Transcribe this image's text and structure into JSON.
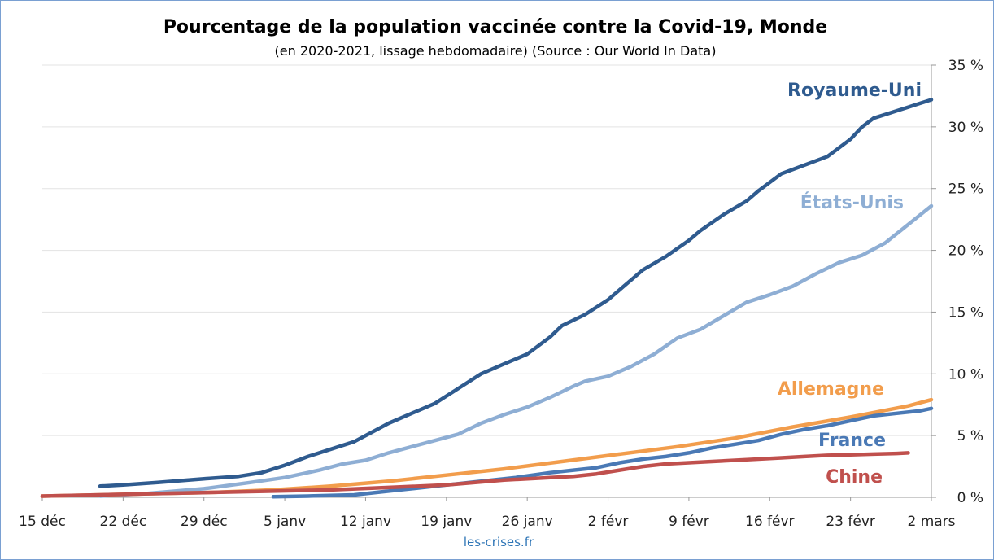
{
  "chart_data": {
    "type": "line",
    "title": "Pourcentage de la population vaccinée contre la Covid-19, Monde",
    "subtitle": "(en 2020-2021, lissage hebdomadaire) (Source : Our World In Data)",
    "source_label": "les-crises.fr",
    "x_ticks": [
      "15 déc",
      "22 déc",
      "29 déc",
      "5 janv",
      "12 janv",
      "19 janv",
      "26 janv",
      "2 févr",
      "9 févr",
      "16 févr",
      "23 févr",
      "2 mars"
    ],
    "x_range": [
      0,
      77
    ],
    "y_ticks": [
      "0 %",
      "5 %",
      "10 %",
      "15 %",
      "20 %",
      "25 %",
      "30 %",
      "35 %"
    ],
    "y_axis_side": "right",
    "ylim": [
      0,
      35
    ],
    "grid": true,
    "legend": "inline labels at line ends",
    "series": [
      {
        "name": "Royaume-Uni",
        "color": "#2f5b8f",
        "x": [
          5,
          7,
          10,
          14,
          17,
          19,
          21,
          23,
          25,
          27,
          28,
          30,
          32,
          34,
          36,
          38,
          40,
          42,
          44,
          45,
          47,
          49,
          50,
          52,
          54,
          56,
          57,
          59,
          61,
          62,
          64,
          66,
          68,
          70,
          71,
          72,
          73,
          74,
          75,
          76,
          77
        ],
        "y": [
          0.9,
          1.0,
          1.2,
          1.5,
          1.7,
          2.0,
          2.6,
          3.3,
          3.9,
          4.5,
          5.0,
          6.0,
          6.8,
          7.6,
          8.8,
          10.0,
          10.8,
          11.6,
          13.0,
          13.9,
          14.8,
          16.0,
          16.8,
          18.4,
          19.5,
          20.8,
          21.6,
          22.9,
          24.0,
          24.8,
          26.2,
          26.9,
          27.6,
          29.0,
          30.0,
          30.7,
          31.0,
          31.3,
          31.6,
          31.9,
          32.2
        ]
      },
      {
        "name": "États-Unis",
        "color": "#8eaed4",
        "x": [
          5,
          9,
          14,
          18,
          21,
          24,
          26,
          28,
          30,
          32,
          34,
          36,
          38,
          40,
          42,
          44,
          46,
          47,
          49,
          51,
          53,
          55,
          57,
          59,
          61,
          63,
          65,
          67,
          69,
          71,
          73,
          75,
          77
        ],
        "y": [
          0.1,
          0.3,
          0.7,
          1.2,
          1.6,
          2.2,
          2.7,
          3.0,
          3.6,
          4.1,
          4.6,
          5.1,
          6.0,
          6.7,
          7.3,
          8.1,
          9.0,
          9.4,
          9.8,
          10.6,
          11.6,
          12.9,
          13.6,
          14.7,
          15.8,
          16.4,
          17.1,
          18.1,
          19.0,
          19.6,
          20.6,
          22.1,
          23.6
        ]
      },
      {
        "name": "Allemagne",
        "color": "#f29d4c",
        "x": [
          0,
          5,
          10,
          15,
          20,
          25,
          30,
          35,
          40,
          45,
          50,
          55,
          60,
          65,
          70,
          75,
          77
        ],
        "y": [
          0.1,
          0.2,
          0.3,
          0.4,
          0.6,
          0.9,
          1.3,
          1.8,
          2.3,
          2.9,
          3.5,
          4.1,
          4.8,
          5.7,
          6.5,
          7.4,
          7.9
        ]
      },
      {
        "name": "France",
        "color": "#4a79b5",
        "x": [
          20,
          23,
          27,
          30,
          33,
          35,
          38,
          41,
          44,
          46,
          48,
          50,
          52,
          54,
          56,
          58,
          60,
          62,
          64,
          66,
          68,
          70,
          72,
          74,
          76,
          77
        ],
        "y": [
          0.05,
          0.1,
          0.2,
          0.5,
          0.8,
          1.0,
          1.3,
          1.6,
          2.0,
          2.2,
          2.4,
          2.8,
          3.1,
          3.3,
          3.6,
          4.0,
          4.3,
          4.6,
          5.1,
          5.5,
          5.8,
          6.2,
          6.6,
          6.8,
          7.0,
          7.2
        ]
      },
      {
        "name": "Chine",
        "color": "#c0504d",
        "x": [
          0,
          5,
          10,
          15,
          20,
          25,
          30,
          35,
          40,
          44,
          46,
          48,
          50,
          52,
          54,
          56,
          58,
          60,
          62,
          64,
          66,
          68,
          70,
          72,
          74,
          75
        ],
        "y": [
          0.1,
          0.2,
          0.3,
          0.4,
          0.5,
          0.6,
          0.8,
          1.0,
          1.4,
          1.6,
          1.7,
          1.9,
          2.2,
          2.5,
          2.7,
          2.8,
          2.9,
          3.0,
          3.1,
          3.2,
          3.3,
          3.4,
          3.45,
          3.5,
          3.55,
          3.6
        ]
      }
    ]
  }
}
